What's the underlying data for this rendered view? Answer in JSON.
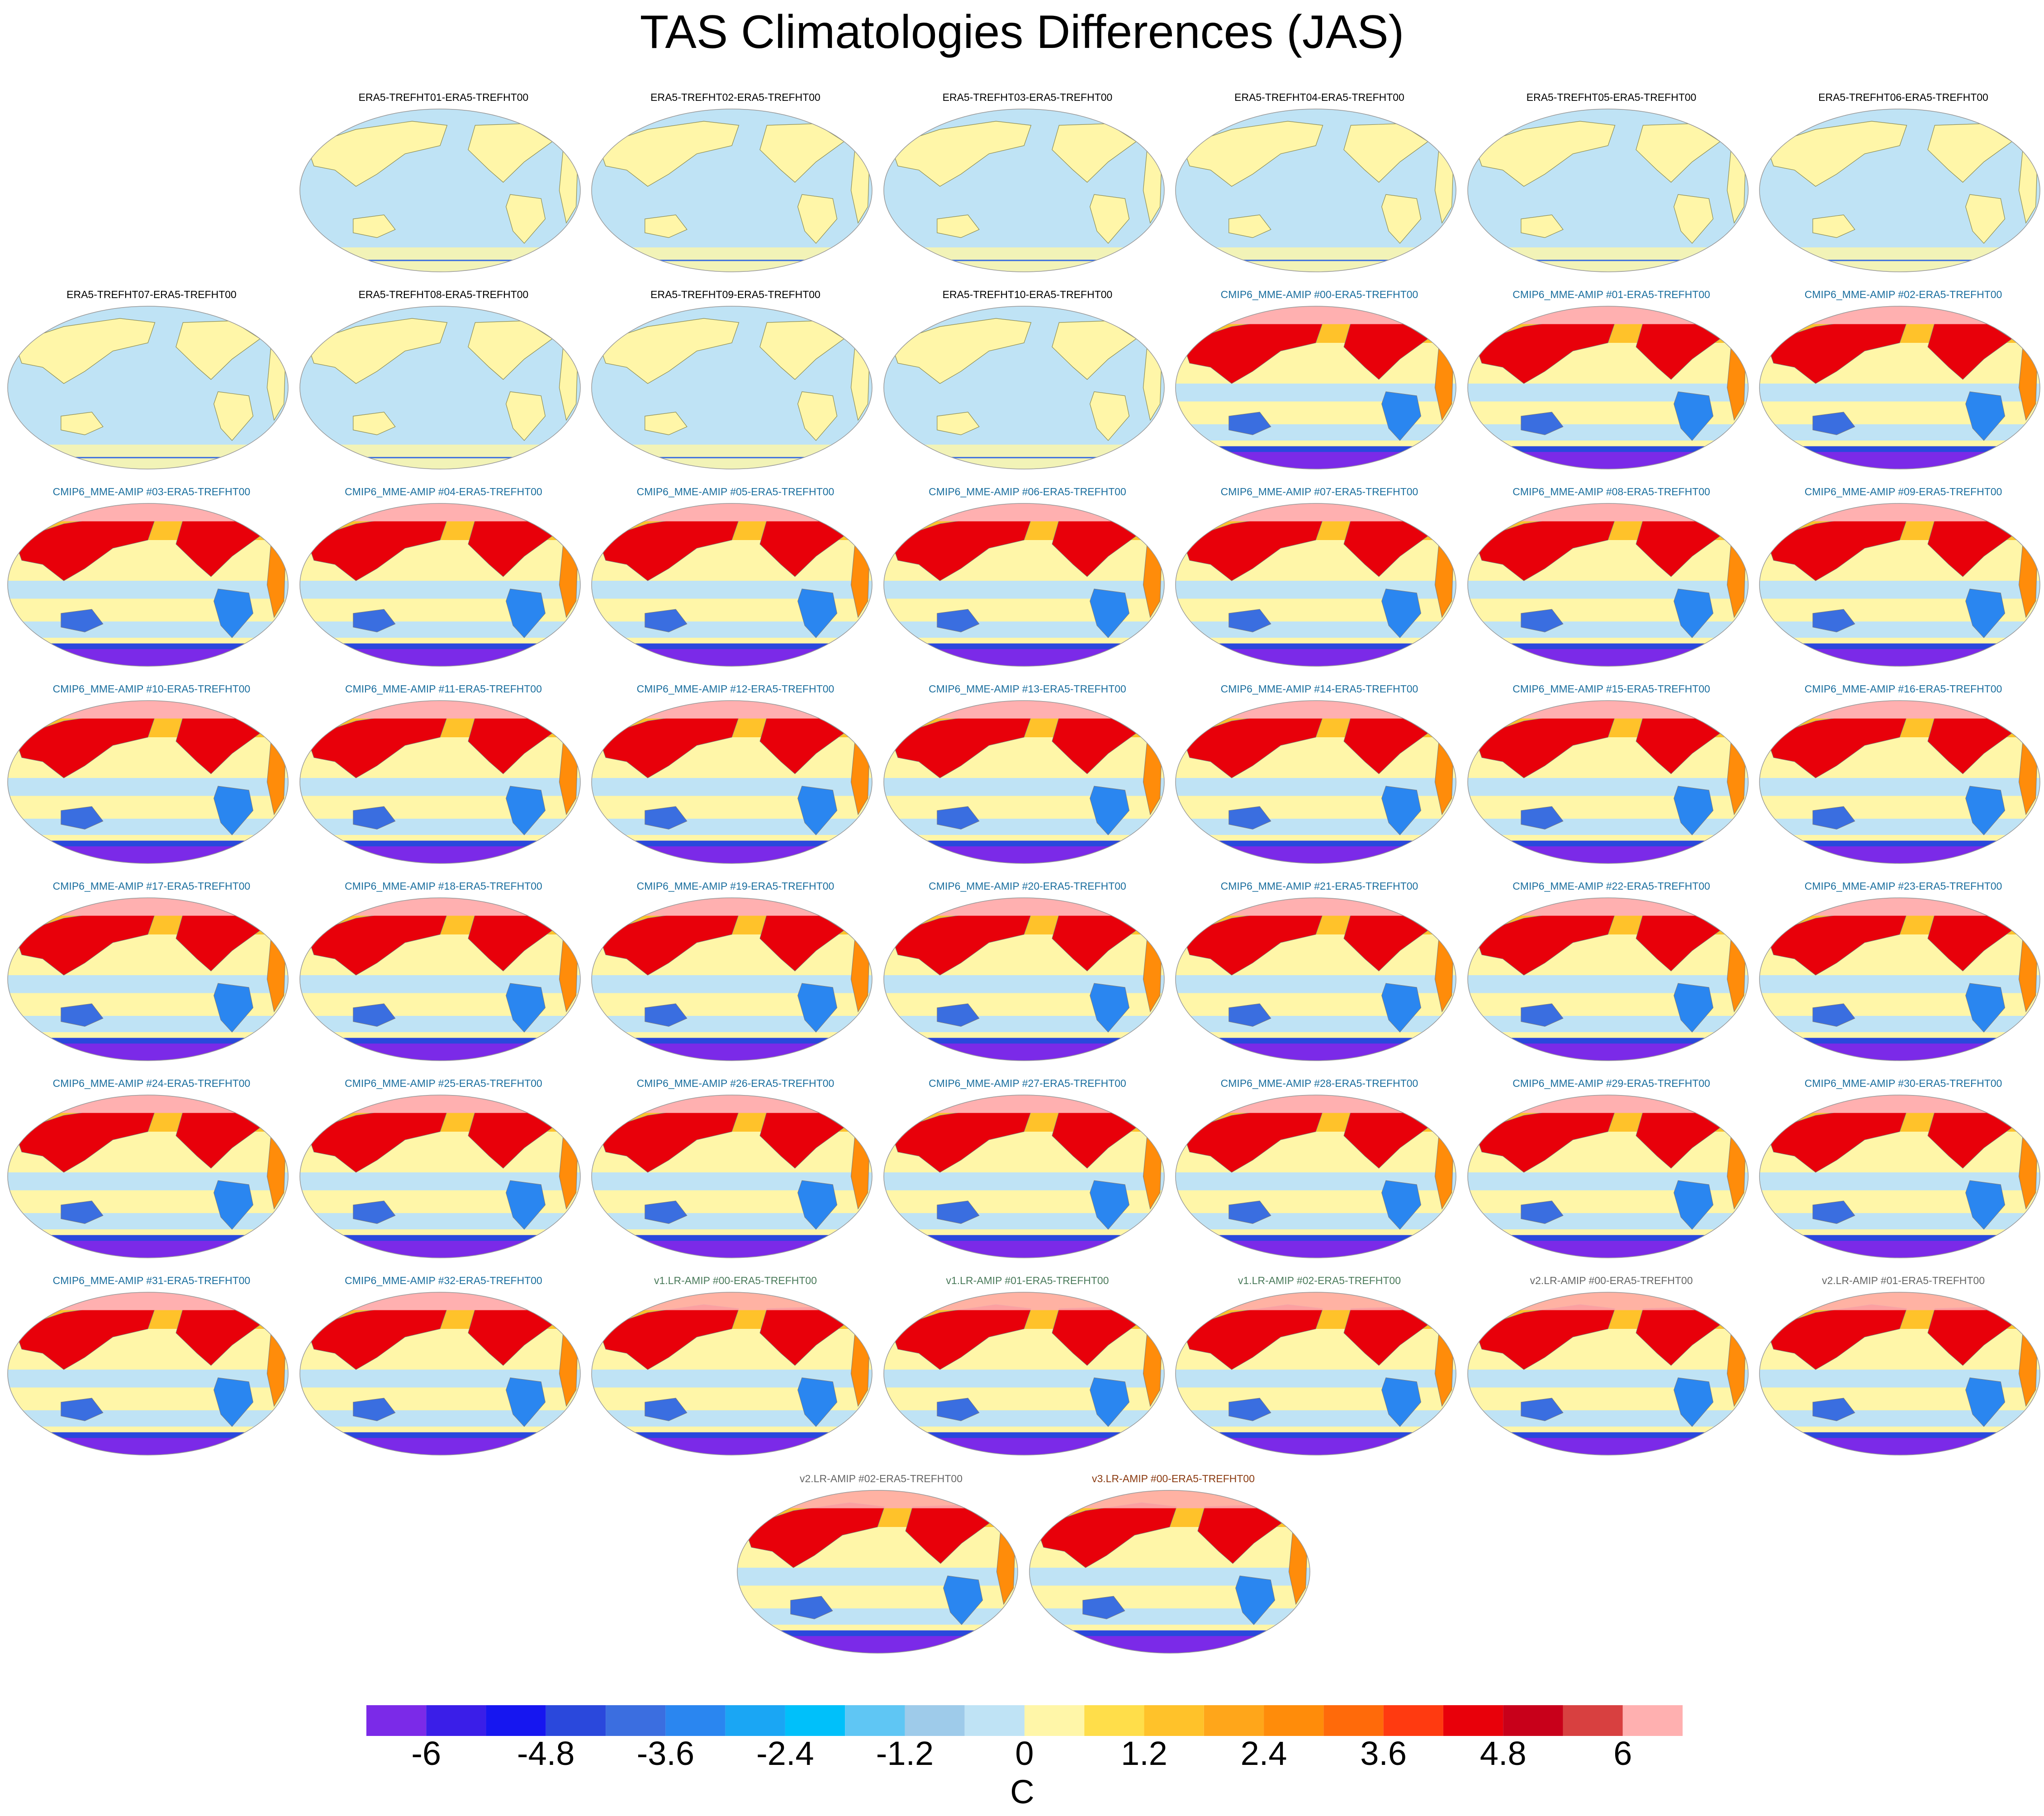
{
  "title": "TAS Climatologies Differences (JAS)",
  "chart_data": {
    "type": "heatmap",
    "title": "TAS Climatologies Differences (JAS)",
    "units": "C",
    "colorbar": {
      "labels": [
        "-6",
        "-4.8",
        "-3.6",
        "-2.4",
        "-1.2",
        "0",
        "1.2",
        "2.4",
        "3.6",
        "4.8",
        "6"
      ],
      "level_step": 0.6,
      "colors": [
        "#7b2ae8",
        "#3a1ee8",
        "#1616f0",
        "#2a48dc",
        "#3b6ee0",
        "#2a86f0",
        "#1aa6f4",
        "#00c0fa",
        "#5fc6f4",
        "#9ecbea",
        "#bfe3f5",
        "#fff6a8",
        "#ffde4a",
        "#ffc22a",
        "#ffa61a",
        "#ff8c0a",
        "#ff6a0a",
        "#ff3a10",
        "#e8000a",
        "#c8001a",
        "#d84040",
        "#ffb0b0"
      ]
    },
    "panels": [
      {
        "label": "ERA5-TREFHT01-ERA5-TREFHT00",
        "group": "era5"
      },
      {
        "label": "ERA5-TREFHT02-ERA5-TREFHT00",
        "group": "era5"
      },
      {
        "label": "ERA5-TREFHT03-ERA5-TREFHT00",
        "group": "era5"
      },
      {
        "label": "ERA5-TREFHT04-ERA5-TREFHT00",
        "group": "era5"
      },
      {
        "label": "ERA5-TREFHT05-ERA5-TREFHT00",
        "group": "era5"
      },
      {
        "label": "ERA5-TREFHT06-ERA5-TREFHT00",
        "group": "era5"
      },
      {
        "label": "ERA5-TREFHT07-ERA5-TREFHT00",
        "group": "era5"
      },
      {
        "label": "ERA5-TREFHT08-ERA5-TREFHT00",
        "group": "era5"
      },
      {
        "label": "ERA5-TREFHT09-ERA5-TREFHT00",
        "group": "era5"
      },
      {
        "label": "ERA5-TREFHT10-ERA5-TREFHT00",
        "group": "era5"
      },
      {
        "label": "CMIP6_MME-AMIP  #00-ERA5-TREFHT00",
        "group": "cmip6"
      },
      {
        "label": "CMIP6_MME-AMIP  #01-ERA5-TREFHT00",
        "group": "cmip6"
      },
      {
        "label": "CMIP6_MME-AMIP  #02-ERA5-TREFHT00",
        "group": "cmip6"
      },
      {
        "label": "CMIP6_MME-AMIP  #03-ERA5-TREFHT00",
        "group": "cmip6"
      },
      {
        "label": "CMIP6_MME-AMIP  #04-ERA5-TREFHT00",
        "group": "cmip6"
      },
      {
        "label": "CMIP6_MME-AMIP  #05-ERA5-TREFHT00",
        "group": "cmip6"
      },
      {
        "label": "CMIP6_MME-AMIP  #06-ERA5-TREFHT00",
        "group": "cmip6"
      },
      {
        "label": "CMIP6_MME-AMIP  #07-ERA5-TREFHT00",
        "group": "cmip6"
      },
      {
        "label": "CMIP6_MME-AMIP  #08-ERA5-TREFHT00",
        "group": "cmip6"
      },
      {
        "label": "CMIP6_MME-AMIP  #09-ERA5-TREFHT00",
        "group": "cmip6"
      },
      {
        "label": "CMIP6_MME-AMIP  #10-ERA5-TREFHT00",
        "group": "cmip6"
      },
      {
        "label": "CMIP6_MME-AMIP  #11-ERA5-TREFHT00",
        "group": "cmip6"
      },
      {
        "label": "CMIP6_MME-AMIP  #12-ERA5-TREFHT00",
        "group": "cmip6"
      },
      {
        "label": "CMIP6_MME-AMIP  #13-ERA5-TREFHT00",
        "group": "cmip6"
      },
      {
        "label": "CMIP6_MME-AMIP  #14-ERA5-TREFHT00",
        "group": "cmip6"
      },
      {
        "label": "CMIP6_MME-AMIP  #15-ERA5-TREFHT00",
        "group": "cmip6"
      },
      {
        "label": "CMIP6_MME-AMIP  #16-ERA5-TREFHT00",
        "group": "cmip6"
      },
      {
        "label": "CMIP6_MME-AMIP  #17-ERA5-TREFHT00",
        "group": "cmip6"
      },
      {
        "label": "CMIP6_MME-AMIP  #18-ERA5-TREFHT00",
        "group": "cmip6"
      },
      {
        "label": "CMIP6_MME-AMIP  #19-ERA5-TREFHT00",
        "group": "cmip6"
      },
      {
        "label": "CMIP6_MME-AMIP  #20-ERA5-TREFHT00",
        "group": "cmip6"
      },
      {
        "label": "CMIP6_MME-AMIP  #21-ERA5-TREFHT00",
        "group": "cmip6"
      },
      {
        "label": "CMIP6_MME-AMIP  #22-ERA5-TREFHT00",
        "group": "cmip6"
      },
      {
        "label": "CMIP6_MME-AMIP  #23-ERA5-TREFHT00",
        "group": "cmip6"
      },
      {
        "label": "CMIP6_MME-AMIP  #24-ERA5-TREFHT00",
        "group": "cmip6"
      },
      {
        "label": "CMIP6_MME-AMIP  #25-ERA5-TREFHT00",
        "group": "cmip6"
      },
      {
        "label": "CMIP6_MME-AMIP  #26-ERA5-TREFHT00",
        "group": "cmip6"
      },
      {
        "label": "CMIP6_MME-AMIP  #27-ERA5-TREFHT00",
        "group": "cmip6"
      },
      {
        "label": "CMIP6_MME-AMIP  #28-ERA5-TREFHT00",
        "group": "cmip6"
      },
      {
        "label": "CMIP6_MME-AMIP  #29-ERA5-TREFHT00",
        "group": "cmip6"
      },
      {
        "label": "CMIP6_MME-AMIP  #30-ERA5-TREFHT00",
        "group": "cmip6"
      },
      {
        "label": "CMIP6_MME-AMIP  #31-ERA5-TREFHT00",
        "group": "cmip6"
      },
      {
        "label": "CMIP6_MME-AMIP  #32-ERA5-TREFHT00",
        "group": "cmip6"
      },
      {
        "label": "v1.LR-AMIP  #00-ERA5-TREFHT00",
        "group": "v1"
      },
      {
        "label": "v1.LR-AMIP  #01-ERA5-TREFHT00",
        "group": "v1"
      },
      {
        "label": "v1.LR-AMIP  #02-ERA5-TREFHT00",
        "group": "v1"
      },
      {
        "label": "v2.LR-AMIP  #00-ERA5-TREFHT00",
        "group": "v2"
      },
      {
        "label": "v2.LR-AMIP  #01-ERA5-TREFHT00",
        "group": "v2"
      },
      {
        "label": "v2.LR-AMIP  #02-ERA5-TREFHT00",
        "group": "v2"
      },
      {
        "label": "v3.LR-AMIP  #00-ERA5-TREFHT00",
        "group": "v3"
      }
    ],
    "label_colors": {
      "era5": "#000000",
      "cmip6": "#1a6e9e",
      "v1": "#4a7a5a",
      "v2": "#666666",
      "v3": "#8a3a10"
    }
  }
}
